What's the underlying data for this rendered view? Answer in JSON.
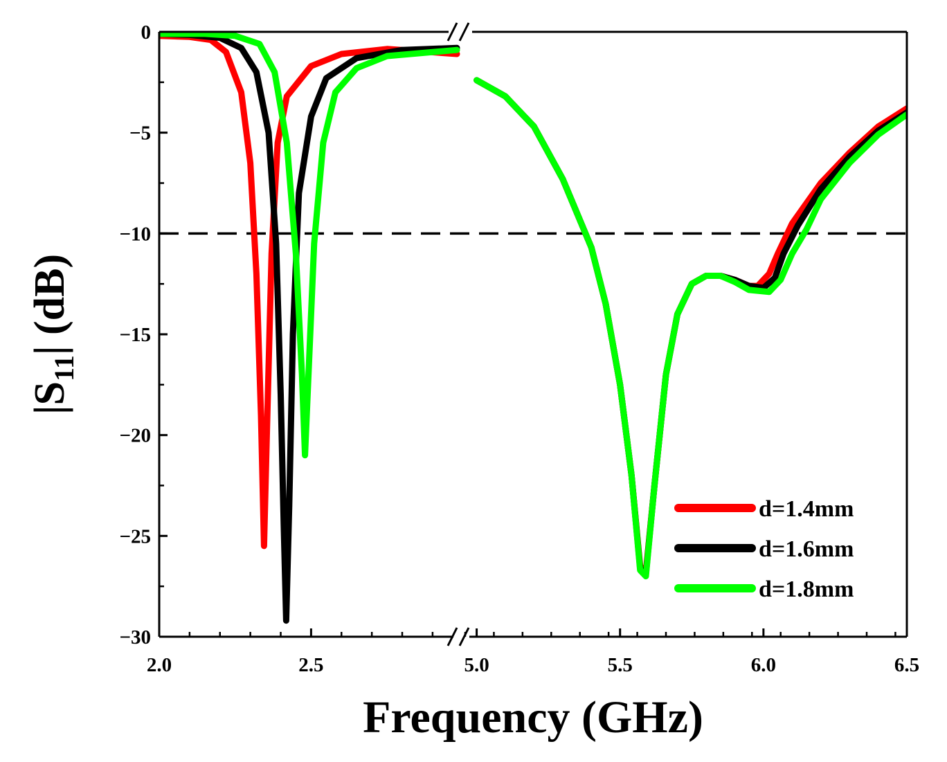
{
  "chart_data": {
    "type": "line",
    "title": "",
    "xlabel": "Frequency (GHz)",
    "ylabel_main": "|S",
    "ylabel_sub": "11",
    "ylabel_tail": "| (dB)",
    "ylim": [
      -30,
      0
    ],
    "yticks": [
      0,
      -5,
      -10,
      -15,
      -20,
      -25,
      -30
    ],
    "ytick_labels": [
      "0",
      "−5",
      "−10",
      "−15",
      "−20",
      "−25",
      "−30"
    ],
    "x_segments": [
      {
        "range": [
          2.0,
          2.98
        ],
        "tick_values": [
          2.0,
          2.5
        ],
        "tick_labels": [
          "2.0",
          "2.5"
        ]
      },
      {
        "range": [
          4.96,
          6.5
        ],
        "tick_values": [
          5.0,
          5.5,
          6.0,
          6.5
        ],
        "tick_labels": [
          "5.0",
          "5.5",
          "6.0",
          "6.5"
        ]
      }
    ],
    "reference_line": {
      "y": -10,
      "style": "dashed"
    },
    "legend_position": "bottom-right",
    "series": [
      {
        "name": "d=1.4mm",
        "color": "#ff0000",
        "points": [
          [
            2.0,
            -0.2
          ],
          [
            2.1,
            -0.25
          ],
          [
            2.17,
            -0.4
          ],
          [
            2.22,
            -1.0
          ],
          [
            2.27,
            -3.0
          ],
          [
            2.3,
            -6.5
          ],
          [
            2.32,
            -12.0
          ],
          [
            2.335,
            -19.0
          ],
          [
            2.345,
            -25.5
          ],
          [
            2.355,
            -19.5
          ],
          [
            2.37,
            -11.0
          ],
          [
            2.39,
            -5.5
          ],
          [
            2.42,
            -3.2
          ],
          [
            2.5,
            -1.7
          ],
          [
            2.6,
            -1.1
          ],
          [
            2.75,
            -0.85
          ],
          [
            2.98,
            -1.1
          ],
          [
            5.0,
            -2.4
          ],
          [
            5.1,
            -3.2
          ],
          [
            5.2,
            -4.7
          ],
          [
            5.3,
            -7.3
          ],
          [
            5.4,
            -10.7
          ],
          [
            5.45,
            -13.5
          ],
          [
            5.5,
            -17.5
          ],
          [
            5.54,
            -22.0
          ],
          [
            5.57,
            -26.5
          ],
          [
            5.59,
            -26.8
          ],
          [
            5.62,
            -22.5
          ],
          [
            5.66,
            -17.0
          ],
          [
            5.7,
            -14.0
          ],
          [
            5.75,
            -12.5
          ],
          [
            5.8,
            -12.1
          ],
          [
            5.85,
            -12.1
          ],
          [
            5.9,
            -12.3
          ],
          [
            5.95,
            -12.6
          ],
          [
            5.98,
            -12.6
          ],
          [
            6.02,
            -12.0
          ],
          [
            6.05,
            -11.0
          ],
          [
            6.1,
            -9.5
          ],
          [
            6.2,
            -7.5
          ],
          [
            6.3,
            -6.0
          ],
          [
            6.4,
            -4.7
          ],
          [
            6.5,
            -3.8
          ]
        ]
      },
      {
        "name": "d=1.6mm",
        "color": "#000000",
        "points": [
          [
            2.0,
            -0.1
          ],
          [
            2.1,
            -0.15
          ],
          [
            2.2,
            -0.3
          ],
          [
            2.27,
            -0.8
          ],
          [
            2.32,
            -2.0
          ],
          [
            2.36,
            -5.0
          ],
          [
            2.385,
            -10.5
          ],
          [
            2.4,
            -18.0
          ],
          [
            2.41,
            -24.5
          ],
          [
            2.418,
            -29.2
          ],
          [
            2.428,
            -23.5
          ],
          [
            2.44,
            -15.0
          ],
          [
            2.46,
            -8.0
          ],
          [
            2.5,
            -4.2
          ],
          [
            2.55,
            -2.3
          ],
          [
            2.65,
            -1.3
          ],
          [
            2.8,
            -0.9
          ],
          [
            2.98,
            -0.8
          ],
          [
            5.0,
            -2.4
          ],
          [
            5.1,
            -3.2
          ],
          [
            5.2,
            -4.7
          ],
          [
            5.3,
            -7.3
          ],
          [
            5.4,
            -10.7
          ],
          [
            5.45,
            -13.5
          ],
          [
            5.5,
            -17.5
          ],
          [
            5.54,
            -22.0
          ],
          [
            5.57,
            -26.6
          ],
          [
            5.59,
            -26.9
          ],
          [
            5.62,
            -22.5
          ],
          [
            5.66,
            -17.0
          ],
          [
            5.7,
            -14.0
          ],
          [
            5.75,
            -12.5
          ],
          [
            5.8,
            -12.1
          ],
          [
            5.85,
            -12.1
          ],
          [
            5.9,
            -12.3
          ],
          [
            5.95,
            -12.6
          ],
          [
            6.0,
            -12.7
          ],
          [
            6.04,
            -12.2
          ],
          [
            6.07,
            -11.0
          ],
          [
            6.12,
            -9.6
          ],
          [
            6.2,
            -7.8
          ],
          [
            6.3,
            -6.2
          ],
          [
            6.4,
            -4.9
          ],
          [
            6.5,
            -4.0
          ]
        ]
      },
      {
        "name": "d=1.8mm",
        "color": "#00ff00",
        "points": [
          [
            2.0,
            -0.1
          ],
          [
            2.15,
            -0.1
          ],
          [
            2.25,
            -0.2
          ],
          [
            2.33,
            -0.6
          ],
          [
            2.38,
            -2.0
          ],
          [
            2.42,
            -5.5
          ],
          [
            2.45,
            -11.0
          ],
          [
            2.47,
            -17.0
          ],
          [
            2.48,
            -21.0
          ],
          [
            2.49,
            -17.5
          ],
          [
            2.51,
            -10.5
          ],
          [
            2.54,
            -5.5
          ],
          [
            2.58,
            -3.0
          ],
          [
            2.65,
            -1.8
          ],
          [
            2.75,
            -1.2
          ],
          [
            2.98,
            -0.9
          ],
          [
            5.0,
            -2.4
          ],
          [
            5.1,
            -3.2
          ],
          [
            5.2,
            -4.7
          ],
          [
            5.3,
            -7.3
          ],
          [
            5.4,
            -10.7
          ],
          [
            5.45,
            -13.5
          ],
          [
            5.5,
            -17.5
          ],
          [
            5.54,
            -22.0
          ],
          [
            5.57,
            -26.7
          ],
          [
            5.59,
            -27.0
          ],
          [
            5.62,
            -22.5
          ],
          [
            5.66,
            -17.0
          ],
          [
            5.7,
            -14.0
          ],
          [
            5.75,
            -12.5
          ],
          [
            5.8,
            -12.1
          ],
          [
            5.85,
            -12.1
          ],
          [
            5.9,
            -12.4
          ],
          [
            5.95,
            -12.8
          ],
          [
            6.02,
            -12.9
          ],
          [
            6.06,
            -12.3
          ],
          [
            6.1,
            -11.0
          ],
          [
            6.15,
            -9.8
          ],
          [
            6.2,
            -8.3
          ],
          [
            6.3,
            -6.5
          ],
          [
            6.4,
            -5.1
          ],
          [
            6.5,
            -4.1
          ]
        ]
      }
    ]
  }
}
